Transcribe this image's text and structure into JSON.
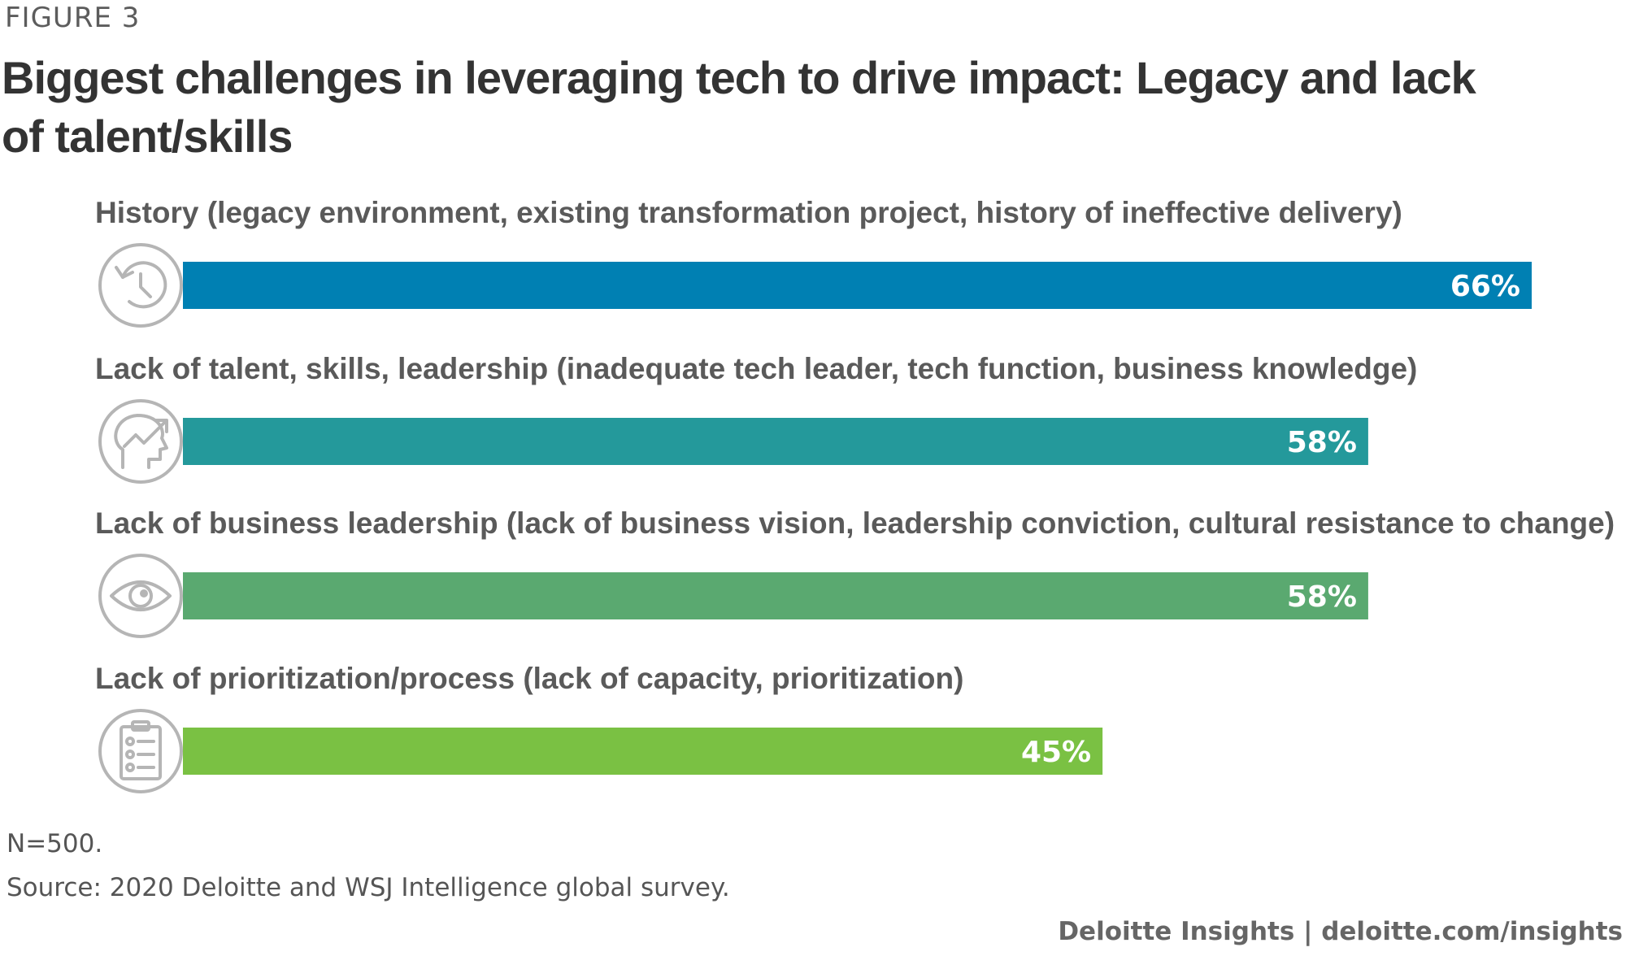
{
  "figure_label": "FIGURE 3",
  "colors": {
    "history": "#0080b3",
    "talent": "#24999b",
    "business": "#5aa970",
    "prioritization": "#7ac143",
    "icon_stroke": "#b5b5b5"
  },
  "chart_data": {
    "type": "bar",
    "orientation": "horizontal",
    "title": "Biggest challenges in leveraging tech to drive impact: Legacy and lack of talent/skills",
    "categories": [
      "History (legacy environment, existing transformation project, history of ineffective delivery)",
      "Lack of talent, skills, leadership (inadequate tech leader, tech function, business knowledge)",
      "Lack of business leadership (lack of business vision, leadership conviction, cultural resistance to change)",
      "Lack of prioritization/process (lack of capacity, prioritization)"
    ],
    "values": [
      66,
      58,
      58,
      45
    ],
    "value_labels": [
      "66%",
      "58%",
      "58%",
      "45%"
    ],
    "icons": [
      "history-icon",
      "head-growth-icon",
      "eye-icon",
      "checklist-icon"
    ],
    "xlim": [
      0,
      70
    ],
    "xlabel": "",
    "ylabel": ""
  },
  "notes": {
    "sample": "N=500.",
    "source": "Source: 2020 Deloitte and WSJ Intelligence global survey."
  },
  "credit": "Deloitte Insights | deloitte.com/insights"
}
